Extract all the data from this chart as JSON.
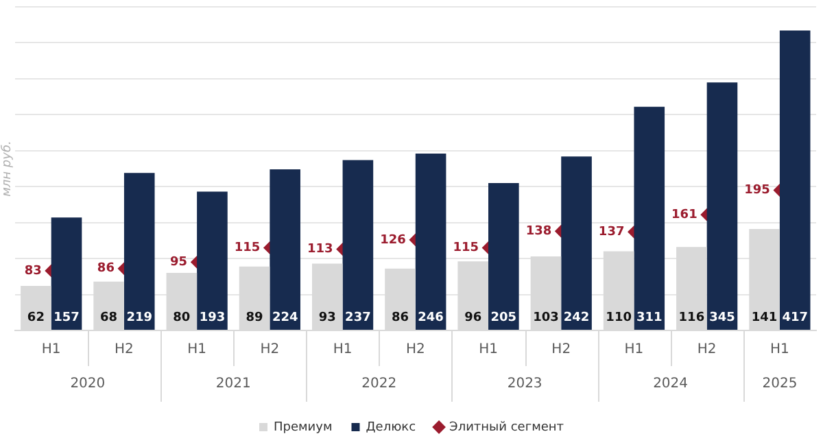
{
  "chart_data": {
    "type": "bar",
    "ylabel": "млн руб.",
    "categories": [
      "H1",
      "H2",
      "H1",
      "H2",
      "H1",
      "H2",
      "H1",
      "H2",
      "H1",
      "H2",
      "H1"
    ],
    "annotations": [
      "2020",
      "2021",
      "2022",
      "2023",
      "2024",
      "2025"
    ],
    "series": [
      {
        "name": "Премиум",
        "color": "#d9d9d9",
        "values": [
          62,
          68,
          80,
          89,
          93,
          86,
          96,
          103,
          110,
          116,
          141
        ]
      },
      {
        "name": "Делюкс",
        "color": "#172b4f",
        "values": [
          157,
          219,
          193,
          224,
          237,
          246,
          205,
          242,
          311,
          345,
          417
        ]
      },
      {
        "name": "Элитный сегмент",
        "type": "scatter",
        "color": "#9b1c2e",
        "marker": "diamond",
        "values": [
          83,
          86,
          95,
          115,
          113,
          126,
          115,
          138,
          137,
          161,
          195
        ]
      }
    ],
    "ylim": [
      0,
      450
    ],
    "grid": "y",
    "legend": "bottom",
    "data_labels": true,
    "tick_labels": "x"
  }
}
